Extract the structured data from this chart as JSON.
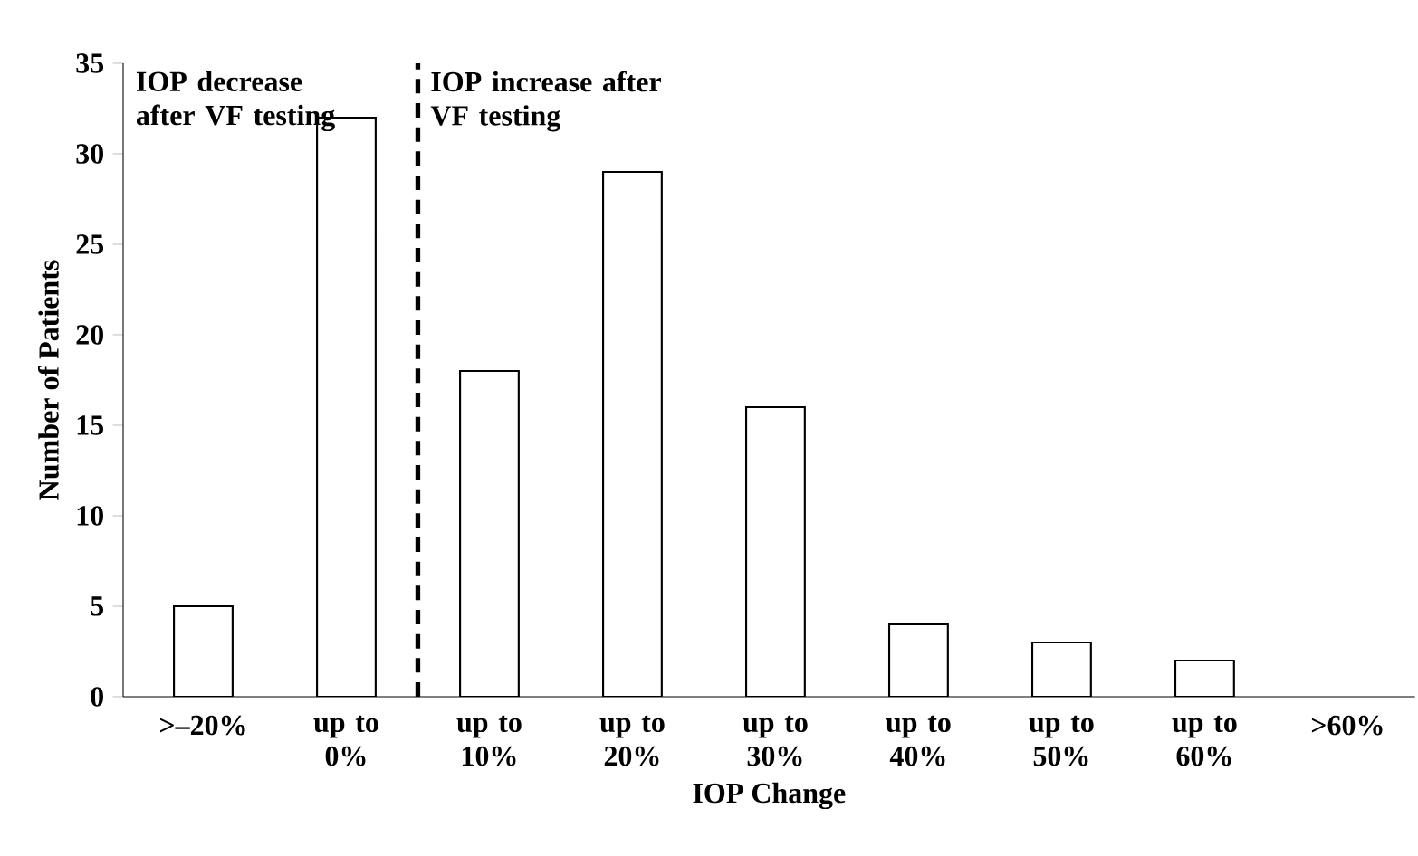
{
  "chart_data": {
    "type": "bar",
    "categories": [
      ">–20%",
      "up to 0%",
      "up to 10%",
      "up to 20%",
      "up to 30%",
      "up to 40%",
      "up to 50%",
      "up to 60%",
      ">60%"
    ],
    "values": [
      5,
      32,
      18,
      29,
      16,
      4,
      3,
      2,
      0
    ],
    "color": "#ffffff",
    "xlabel": "IOP Change",
    "ylabel": "Number of Patients",
    "ylim": [
      0,
      35
    ],
    "yticks": [
      0,
      5,
      10,
      15,
      20,
      25,
      30,
      35
    ],
    "annotations": [
      "IOP decrease after VF testing",
      "IOP increase after VF testing"
    ],
    "grid": false
  }
}
